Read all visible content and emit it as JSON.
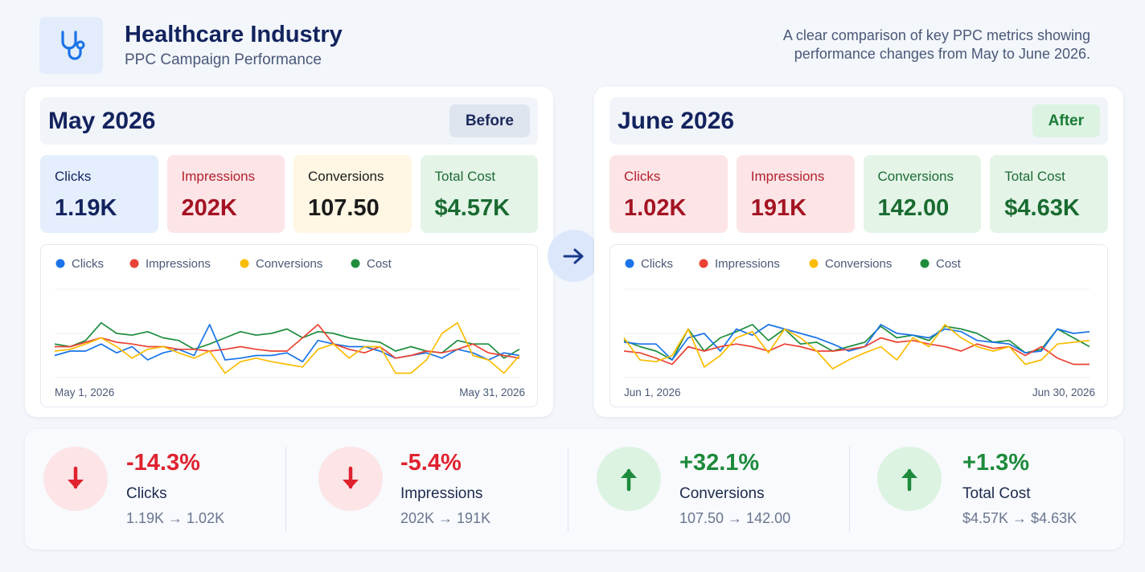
{
  "header": {
    "title": "Healthcare Industry",
    "subtitle": "PPC Campaign Performance",
    "description": "A clear comparison of key PPC metrics showing performance changes from May to June 2026.",
    "icon": "stethoscope-icon"
  },
  "colors": {
    "clicks": "#1a73e8",
    "impressions": "#ea4335",
    "conversions": "#fbbc04",
    "cost": "#1e8e3e"
  },
  "panels": [
    {
      "month": "May 2026",
      "tag": "Before",
      "cards": [
        {
          "label": "Clicks",
          "value": "1.19K"
        },
        {
          "label": "Impressions",
          "value": "202K"
        },
        {
          "label": "Conversions",
          "value": "107.50"
        },
        {
          "label": "Total Cost",
          "value": "$4.57K"
        }
      ],
      "start_label": "May 1, 2026",
      "end_label": "May 31, 2026"
    },
    {
      "month": "June 2026",
      "tag": "After",
      "cards": [
        {
          "label": "Clicks",
          "value": "1.02K"
        },
        {
          "label": "Impressions",
          "value": "191K"
        },
        {
          "label": "Conversions",
          "value": "142.00"
        },
        {
          "label": "Total Cost",
          "value": "$4.63K"
        }
      ],
      "start_label": "Jun 1, 2026",
      "end_label": "Jun 30, 2026"
    }
  ],
  "chart_data": [
    {
      "type": "line",
      "x_range": [
        "May 1, 2026",
        "May 31, 2026"
      ],
      "normalized": true,
      "ylim": [
        0,
        1
      ],
      "grid": true,
      "legend": "top-left",
      "series": [
        {
          "name": "Clicks",
          "values": [
            0.25,
            0.3,
            0.3,
            0.38,
            0.28,
            0.35,
            0.2,
            0.28,
            0.32,
            0.25,
            0.6,
            0.2,
            0.22,
            0.25,
            0.25,
            0.28,
            0.18,
            0.42,
            0.38,
            0.35,
            0.35,
            0.3,
            0.22,
            0.25,
            0.28,
            0.22,
            0.32,
            0.28,
            0.2,
            0.28,
            0.25
          ]
        },
        {
          "name": "Impressions",
          "values": [
            0.35,
            0.35,
            0.4,
            0.45,
            0.4,
            0.38,
            0.35,
            0.35,
            0.32,
            0.32,
            0.3,
            0.32,
            0.35,
            0.32,
            0.3,
            0.3,
            0.45,
            0.6,
            0.38,
            0.32,
            0.28,
            0.35,
            0.22,
            0.25,
            0.3,
            0.28,
            0.32,
            0.38,
            0.28,
            0.25,
            0.22
          ]
        },
        {
          "name": "Conversions",
          "values": [
            0.3,
            0.32,
            0.38,
            0.45,
            0.35,
            0.22,
            0.32,
            0.35,
            0.28,
            0.22,
            0.3,
            0.05,
            0.18,
            0.22,
            0.18,
            0.15,
            0.12,
            0.32,
            0.38,
            0.22,
            0.35,
            0.35,
            0.05,
            0.05,
            0.2,
            0.5,
            0.62,
            0.25,
            0.2,
            0.05,
            0.25
          ]
        },
        {
          "name": "Cost",
          "values": [
            0.38,
            0.35,
            0.42,
            0.62,
            0.5,
            0.48,
            0.52,
            0.45,
            0.42,
            0.32,
            0.38,
            0.45,
            0.52,
            0.48,
            0.5,
            0.55,
            0.45,
            0.52,
            0.5,
            0.45,
            0.42,
            0.4,
            0.3,
            0.35,
            0.3,
            0.28,
            0.42,
            0.38,
            0.38,
            0.22,
            0.32
          ]
        }
      ]
    },
    {
      "type": "line",
      "x_range": [
        "Jun 1, 2026",
        "Jun 30, 2026"
      ],
      "normalized": true,
      "ylim": [
        0,
        1
      ],
      "grid": true,
      "legend": "top-left",
      "series": [
        {
          "name": "Clicks",
          "values": [
            0.4,
            0.38,
            0.38,
            0.2,
            0.45,
            0.5,
            0.3,
            0.55,
            0.48,
            0.6,
            0.55,
            0.5,
            0.45,
            0.38,
            0.3,
            0.35,
            0.6,
            0.5,
            0.48,
            0.45,
            0.55,
            0.52,
            0.42,
            0.4,
            0.38,
            0.28,
            0.3,
            0.55,
            0.5,
            0.52
          ]
        },
        {
          "name": "Impressions",
          "values": [
            0.3,
            0.28,
            0.22,
            0.15,
            0.35,
            0.3,
            0.35,
            0.38,
            0.35,
            0.3,
            0.38,
            0.35,
            0.3,
            0.3,
            0.32,
            0.35,
            0.45,
            0.4,
            0.42,
            0.38,
            0.35,
            0.3,
            0.38,
            0.33,
            0.35,
            0.25,
            0.35,
            0.22,
            0.15,
            0.15
          ]
        },
        {
          "name": "Conversions",
          "values": [
            0.45,
            0.2,
            0.18,
            0.25,
            0.55,
            0.12,
            0.25,
            0.45,
            0.52,
            0.28,
            0.55,
            0.45,
            0.3,
            0.1,
            0.2,
            0.28,
            0.35,
            0.2,
            0.45,
            0.35,
            0.6,
            0.45,
            0.35,
            0.3,
            0.35,
            0.15,
            0.2,
            0.38,
            0.4,
            0.42
          ]
        },
        {
          "name": "Cost",
          "values": [
            0.42,
            0.35,
            0.3,
            0.2,
            0.55,
            0.3,
            0.45,
            0.52,
            0.6,
            0.42,
            0.55,
            0.38,
            0.4,
            0.3,
            0.35,
            0.4,
            0.58,
            0.45,
            0.48,
            0.42,
            0.58,
            0.55,
            0.5,
            0.4,
            0.42,
            0.28,
            0.32,
            0.55,
            0.45,
            0.35
          ]
        }
      ]
    }
  ],
  "summary": [
    {
      "pct": "-14.3%",
      "name": "Clicks",
      "change": "1.19K → 1.02K",
      "dir": "down"
    },
    {
      "pct": "-5.4%",
      "name": "Impressions",
      "change": "202K → 191K",
      "dir": "down"
    },
    {
      "pct": "+32.1%",
      "name": "Conversions",
      "change": "107.50 → 142.00",
      "dir": "up"
    },
    {
      "pct": "+1.3%",
      "name": "Total Cost",
      "change": "$4.57K → $4.63K",
      "dir": "up"
    }
  ]
}
